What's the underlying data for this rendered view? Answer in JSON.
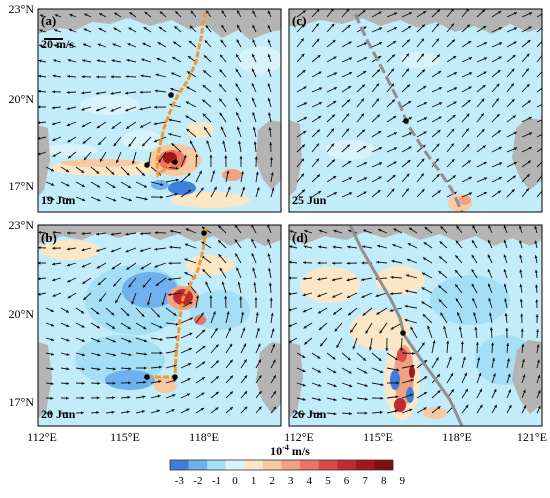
{
  "figure": {
    "y_ticks": [
      {
        "label": "23°N",
        "lat": 23
      },
      {
        "label": "20°N",
        "lat": 20
      },
      {
        "label": "17°N",
        "lat": 17
      }
    ],
    "x_ticks_left": [
      {
        "label": "112°E",
        "lon": 112
      },
      {
        "label": "115°E",
        "lon": 115
      },
      {
        "label": "118°E",
        "lon": 118
      }
    ],
    "x_ticks_right": [
      {
        "label": "112°E",
        "lon": 112
      },
      {
        "label": "115°E",
        "lon": 115
      },
      {
        "label": "118°E",
        "lon": 118
      },
      {
        "label": "121°E",
        "lon": 121
      }
    ],
    "wind_scale_label": "20 m/s"
  },
  "panels": [
    {
      "id": "a",
      "label": "(a)",
      "date": "19 Jun"
    },
    {
      "id": "b",
      "label": "(b)",
      "date": "20 Jun"
    },
    {
      "id": "c",
      "label": "(c)",
      "date": "25 Jun"
    },
    {
      "id": "d",
      "label": "(d)",
      "date": "26 Jun"
    }
  ],
  "colorbar": {
    "unit_base": "10",
    "unit_exp": "-4",
    "unit_tail": " m/s",
    "ticks": [
      "-3",
      "-2",
      "-1",
      "0",
      "1",
      "2",
      "3",
      "4",
      "5",
      "6",
      "7",
      "8",
      "9"
    ],
    "colors": [
      "#3f7fdc",
      "#6fb0ee",
      "#a5dff5",
      "#d8f3fb",
      "#fbe7c6",
      "#f7c9a0",
      "#f1a282",
      "#ea7562",
      "#db4a46",
      "#c42732",
      "#a3161f",
      "#820d16"
    ]
  },
  "colors": {
    "ocean": "#c3ecfa",
    "land": "#b4b4b4",
    "track_orange": "#f09a30",
    "track_gray": "#8f8f8f",
    "arrow": "#111111"
  }
}
